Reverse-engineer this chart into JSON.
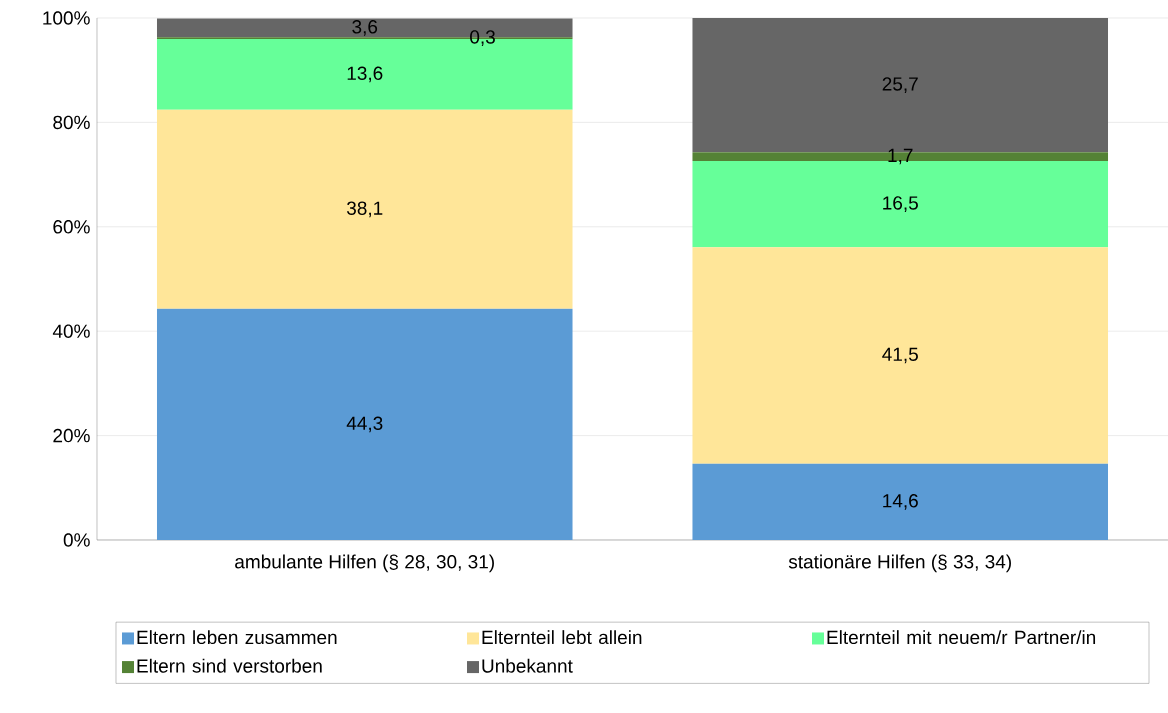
{
  "chart_data": {
    "type": "bar",
    "stacked": true,
    "categories": [
      "ambulante Hilfen (§ 28, 30, 31)",
      "stationäre Hilfen (§ 33, 34)"
    ],
    "series": [
      {
        "name": "Eltern leben zusammen",
        "color": "#5b9bd5",
        "values": [
          44.3,
          14.6
        ],
        "value_labels": [
          "44,3",
          "14,6"
        ]
      },
      {
        "name": "Elternteil lebt allein",
        "color": "#ffe699",
        "values": [
          38.1,
          41.5
        ],
        "value_labels": [
          "38,1",
          "41,5"
        ]
      },
      {
        "name": "Elternteil mit neuem/r Partner/in",
        "color": "#66ff99",
        "values": [
          13.6,
          16.5
        ],
        "value_labels": [
          "13,6",
          "16,5"
        ]
      },
      {
        "name": "Eltern sind verstorben",
        "color": "#548235",
        "values": [
          0.3,
          1.7
        ],
        "value_labels": [
          "0,3",
          "1,7"
        ]
      },
      {
        "name": "Unbekannt",
        "color": "#666666",
        "values": [
          3.6,
          25.7
        ],
        "value_labels": [
          "3,6",
          "25,7"
        ]
      }
    ],
    "ylim": [
      0,
      100
    ],
    "yticks": [
      {
        "value": 0,
        "label": "0%"
      },
      {
        "value": 20,
        "label": "20%"
      },
      {
        "value": 40,
        "label": "40%"
      },
      {
        "value": 60,
        "label": "60%"
      },
      {
        "value": 80,
        "label": "80%"
      },
      {
        "value": 100,
        "label": "100%"
      }
    ],
    "grid": "y",
    "legend": "bottom"
  }
}
